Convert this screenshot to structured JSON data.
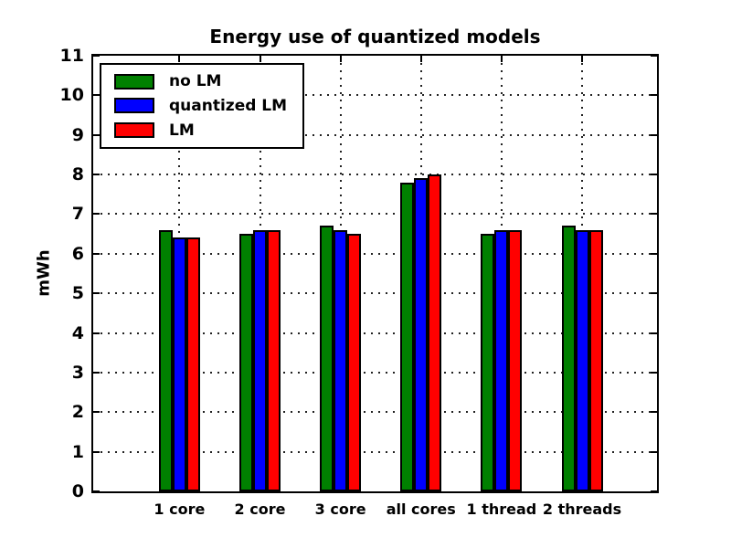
{
  "chart_data": {
    "type": "bar",
    "title": "Energy use of quantized models",
    "xlabel": "",
    "ylabel": "mWh",
    "ylim": [
      0,
      11
    ],
    "yticks": [
      0,
      1,
      2,
      3,
      4,
      5,
      6,
      7,
      8,
      9,
      10,
      11
    ],
    "grid": true,
    "legend_position": "upper left",
    "categories": [
      "1 core",
      "2 core",
      "3 core",
      "all cores",
      "1 thread",
      "2 threads"
    ],
    "series": [
      {
        "name": "no LM",
        "color": "#008000",
        "values": [
          6.6,
          6.5,
          6.7,
          7.8,
          6.5,
          6.7
        ]
      },
      {
        "name": "quantized LM",
        "color": "#0000ff",
        "values": [
          6.4,
          6.6,
          6.6,
          7.9,
          6.6,
          6.6
        ]
      },
      {
        "name": "LM",
        "color": "#ff0000",
        "values": [
          6.4,
          6.6,
          6.5,
          8.0,
          6.6,
          6.6
        ]
      }
    ]
  }
}
